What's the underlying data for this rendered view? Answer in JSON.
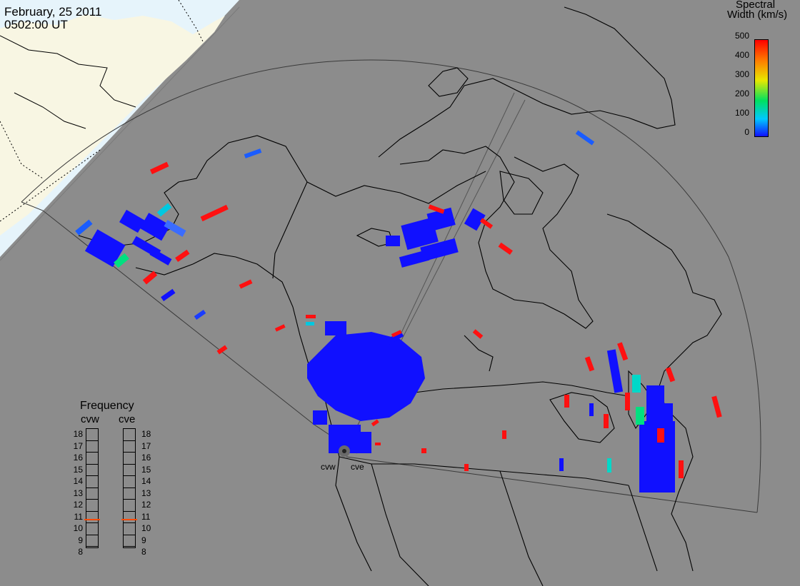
{
  "header": {
    "date": "February, 25 2011",
    "time": "0502:00 UT"
  },
  "colorbar": {
    "title_line1": "Spectral",
    "title_line2": "Width (km/s)",
    "ticks": [
      "500",
      "400",
      "300",
      "200",
      "100",
      "0"
    ],
    "colors": [
      "#1010ff",
      "#00c8ff",
      "#00e060",
      "#e8e800",
      "#ff8000",
      "#ff0000"
    ]
  },
  "frequency_panel": {
    "title": "Frequency",
    "radars": [
      "cvw",
      "cve"
    ],
    "levels": [
      "18",
      "17",
      "16",
      "15",
      "14",
      "13",
      "12",
      "11",
      "10",
      "9",
      "8"
    ],
    "cvw_marker": "11",
    "cve_marker": "11",
    "marker_color": "#ff4a00"
  },
  "radar_sites": {
    "west": "cvw",
    "east": "cve"
  },
  "map_colors": {
    "field_background": "#8c8c8c",
    "ocean": "#e6f4fb",
    "land": "#f8f6e3",
    "coastline": "#000000",
    "fov_outline": "#3a3a3a",
    "echo_low": "#1010ff",
    "echo_high": "#ff1010",
    "echo_mid": "#00d8c8"
  }
}
